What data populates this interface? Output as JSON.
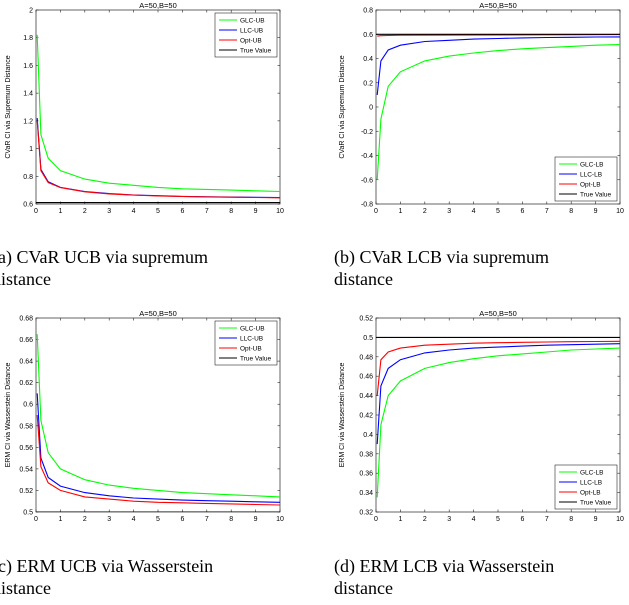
{
  "chart_data": [
    {
      "type": "line",
      "title": "A=50,B=50",
      "xlabel": "Sample Size",
      "ylabel": "CVaR CI via Supremum Distance",
      "x_exponent": "4",
      "xlim": [
        0,
        10
      ],
      "ylim": [
        0.6,
        2
      ],
      "xticks": [
        0,
        1,
        2,
        3,
        4,
        5,
        6,
        7,
        8,
        9,
        10
      ],
      "yticks": [
        0.6,
        0.8,
        1,
        1.2,
        1.4,
        1.6,
        1.8,
        2
      ],
      "legend_position": "top-right",
      "series": [
        {
          "name": "GLC-UB",
          "color": "#00ff00",
          "x": [
            0.05,
            0.2,
            0.5,
            1,
            2,
            3,
            4,
            5,
            6,
            7,
            8,
            9,
            10
          ],
          "values": [
            1.82,
            1.1,
            0.93,
            0.84,
            0.78,
            0.75,
            0.735,
            0.72,
            0.71,
            0.705,
            0.7,
            0.695,
            0.69
          ]
        },
        {
          "name": "LLC-UB",
          "color": "#0000ff",
          "x": [
            0.05,
            0.2,
            0.5,
            1,
            2,
            3,
            4,
            5,
            6,
            7,
            8,
            9,
            10
          ],
          "values": [
            1.22,
            0.85,
            0.76,
            0.72,
            0.69,
            0.675,
            0.665,
            0.66,
            0.655,
            0.652,
            0.65,
            0.648,
            0.646
          ]
        },
        {
          "name": "Opt-UB",
          "color": "#ff0000",
          "x": [
            0.05,
            0.2,
            0.5,
            1,
            2,
            3,
            4,
            5,
            6,
            7,
            8,
            9,
            10
          ],
          "values": [
            1.2,
            0.84,
            0.755,
            0.718,
            0.688,
            0.673,
            0.664,
            0.658,
            0.654,
            0.651,
            0.649,
            0.647,
            0.645
          ]
        },
        {
          "name": "True Value",
          "color": "#000000",
          "x": [
            0,
            10
          ],
          "values": [
            0.61,
            0.61
          ]
        }
      ]
    },
    {
      "type": "line",
      "title": "A=50,B=50",
      "xlabel": "Sample Size",
      "ylabel": "CVaR CI via Supremum Distance",
      "x_exponent": "4",
      "xlim": [
        0,
        10
      ],
      "ylim": [
        -0.8,
        0.8
      ],
      "xticks": [
        0,
        1,
        2,
        3,
        4,
        5,
        6,
        7,
        8,
        9,
        10
      ],
      "yticks": [
        -0.8,
        -0.6,
        -0.4,
        -0.2,
        0,
        0.2,
        0.4,
        0.6,
        0.8
      ],
      "legend_position": "bottom-right",
      "series": [
        {
          "name": "GLC-LB",
          "color": "#00ff00",
          "x": [
            0.05,
            0.2,
            0.5,
            1,
            2,
            3,
            4,
            5,
            6,
            7,
            8,
            9,
            10
          ],
          "values": [
            -0.6,
            -0.1,
            0.17,
            0.29,
            0.38,
            0.42,
            0.445,
            0.465,
            0.48,
            0.49,
            0.5,
            0.51,
            0.515
          ]
        },
        {
          "name": "LLC-LB",
          "color": "#0000ff",
          "x": [
            0.05,
            0.2,
            0.5,
            1,
            2,
            3,
            4,
            5,
            6,
            7,
            8,
            9,
            10
          ],
          "values": [
            0.1,
            0.38,
            0.47,
            0.51,
            0.54,
            0.55,
            0.56,
            0.565,
            0.57,
            0.573,
            0.575,
            0.577,
            0.578
          ]
        },
        {
          "name": "Opt-LB",
          "color": "#ff0000",
          "x": [
            0.05,
            0.2,
            0.5,
            1,
            10
          ],
          "values": [
            0.585,
            0.588,
            0.59,
            0.592,
            0.597
          ]
        },
        {
          "name": "True Value",
          "color": "#000000",
          "x": [
            0,
            10
          ],
          "values": [
            0.6,
            0.6
          ]
        }
      ]
    },
    {
      "type": "line",
      "title": "A=50,B=50",
      "xlabel": "Sample Size",
      "ylabel": "ERM CI via Wasserstein Distance",
      "x_exponent": "4",
      "xlim": [
        0,
        10
      ],
      "ylim": [
        0.5,
        0.68
      ],
      "xticks": [
        0,
        1,
        2,
        3,
        4,
        5,
        6,
        7,
        8,
        9,
        10
      ],
      "yticks": [
        0.5,
        0.52,
        0.54,
        0.56,
        0.58,
        0.6,
        0.62,
        0.64,
        0.66,
        0.68
      ],
      "legend_position": "top-right",
      "series": [
        {
          "name": "GLC-UB",
          "color": "#00ff00",
          "x": [
            0.05,
            0.2,
            0.5,
            1,
            2,
            3,
            4,
            5,
            6,
            7,
            8,
            9,
            10
          ],
          "values": [
            0.665,
            0.585,
            0.555,
            0.54,
            0.53,
            0.525,
            0.522,
            0.52,
            0.518,
            0.517,
            0.516,
            0.515,
            0.514
          ]
        },
        {
          "name": "LLC-UB",
          "color": "#0000ff",
          "x": [
            0.05,
            0.2,
            0.5,
            1,
            2,
            3,
            4,
            5,
            6,
            7,
            8,
            9,
            10
          ],
          "values": [
            0.61,
            0.55,
            0.532,
            0.524,
            0.518,
            0.515,
            0.513,
            0.512,
            0.511,
            0.5105,
            0.51,
            0.5095,
            0.509
          ]
        },
        {
          "name": "Opt-UB",
          "color": "#ff0000",
          "x": [
            0.05,
            0.2,
            0.5,
            1,
            2,
            3,
            4,
            5,
            6,
            7,
            8,
            9,
            10
          ],
          "values": [
            0.59,
            0.542,
            0.527,
            0.52,
            0.514,
            0.512,
            0.51,
            0.509,
            0.5085,
            0.508,
            0.5075,
            0.507,
            0.5065
          ]
        },
        {
          "name": "True Value",
          "color": "#000000",
          "x": [
            0,
            10
          ],
          "values": [
            0.5,
            0.5
          ]
        }
      ]
    },
    {
      "type": "line",
      "title": "A=50,B=50",
      "xlabel": "Sample Size",
      "ylabel": "ERM CI via Wasserstein Distance",
      "x_exponent": "4",
      "xlim": [
        0,
        10
      ],
      "ylim": [
        0.32,
        0.52
      ],
      "xticks": [
        0,
        1,
        2,
        3,
        4,
        5,
        6,
        7,
        8,
        9,
        10
      ],
      "yticks": [
        0.32,
        0.34,
        0.36,
        0.38,
        0.4,
        0.42,
        0.44,
        0.46,
        0.48,
        0.5,
        0.52
      ],
      "legend_position": "bottom-right",
      "series": [
        {
          "name": "GLC-LB",
          "color": "#00ff00",
          "x": [
            0.05,
            0.2,
            0.5,
            1,
            2,
            3,
            4,
            5,
            6,
            7,
            8,
            9,
            10
          ],
          "values": [
            0.335,
            0.41,
            0.44,
            0.455,
            0.468,
            0.474,
            0.478,
            0.481,
            0.483,
            0.485,
            0.487,
            0.488,
            0.489
          ]
        },
        {
          "name": "LLC-LB",
          "color": "#0000ff",
          "x": [
            0.05,
            0.2,
            0.5,
            1,
            2,
            3,
            4,
            5,
            6,
            7,
            8,
            9,
            10
          ],
          "values": [
            0.39,
            0.45,
            0.468,
            0.477,
            0.484,
            0.487,
            0.489,
            0.49,
            0.491,
            0.492,
            0.4925,
            0.493,
            0.4935
          ]
        },
        {
          "name": "Opt-LB",
          "color": "#ff0000",
          "x": [
            0.05,
            0.2,
            0.5,
            1,
            2,
            3,
            4,
            5,
            6,
            7,
            8,
            9,
            10
          ],
          "values": [
            0.44,
            0.477,
            0.485,
            0.489,
            0.492,
            0.493,
            0.494,
            0.4945,
            0.495,
            0.4953,
            0.4956,
            0.4958,
            0.496
          ]
        },
        {
          "name": "True Value",
          "color": "#000000",
          "x": [
            0,
            10
          ],
          "values": [
            0.5,
            0.5
          ]
        }
      ]
    }
  ],
  "captions": [
    [
      "(a) CVaR UCB via supremum",
      "distance"
    ],
    [
      "(b) CVaR LCB via supremum",
      "distance"
    ],
    [
      "(c) ERM UCB via Wasserstein",
      "distance"
    ],
    [
      "(d) ERM LCB via Wasserstein",
      "distance"
    ]
  ]
}
